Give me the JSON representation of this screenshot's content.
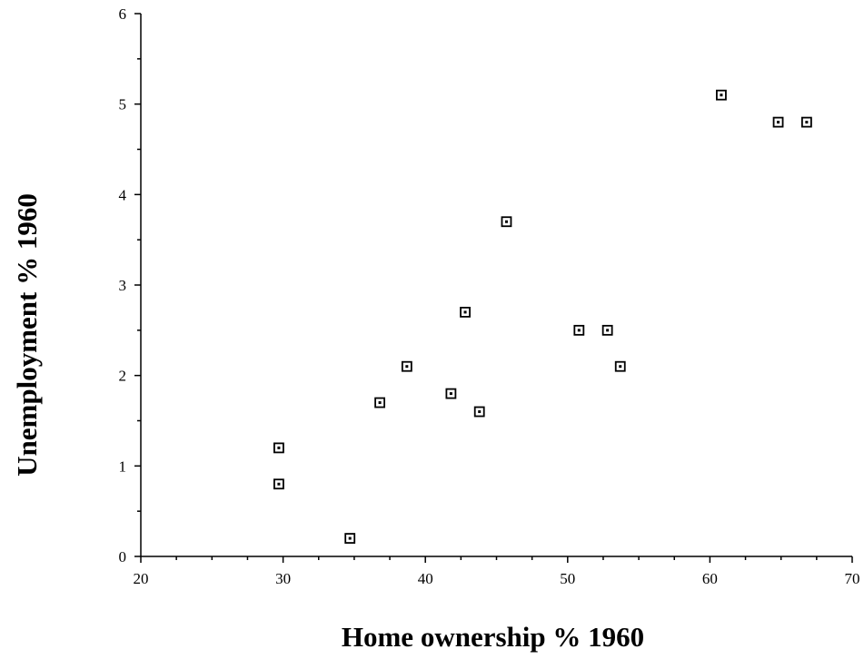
{
  "chart_data": {
    "type": "scatter",
    "title": "",
    "xlabel": "Home ownership % 1960",
    "ylabel": "Unemployment % 1960",
    "xlim": [
      20,
      70
    ],
    "ylim": [
      0,
      6
    ],
    "x_ticks": [
      20,
      30,
      40,
      50,
      60,
      70
    ],
    "y_ticks": [
      0,
      1,
      2,
      3,
      4,
      5,
      6
    ],
    "x_minor_step": 2.5,
    "y_minor_step": 0.5,
    "grid": false,
    "legend": "none",
    "marker": "hollow-square-with-dot",
    "color": "#000000",
    "series": [
      {
        "points": [
          {
            "x": 29.7,
            "y": 1.2
          },
          {
            "x": 29.7,
            "y": 0.8
          },
          {
            "x": 34.7,
            "y": 0.2
          },
          {
            "x": 36.8,
            "y": 1.7
          },
          {
            "x": 38.7,
            "y": 2.1
          },
          {
            "x": 41.8,
            "y": 1.8
          },
          {
            "x": 42.8,
            "y": 2.7
          },
          {
            "x": 43.8,
            "y": 1.6
          },
          {
            "x": 45.7,
            "y": 3.7
          },
          {
            "x": 50.8,
            "y": 2.5
          },
          {
            "x": 52.8,
            "y": 2.5
          },
          {
            "x": 53.7,
            "y": 2.1
          },
          {
            "x": 60.8,
            "y": 5.1
          },
          {
            "x": 64.8,
            "y": 4.8
          },
          {
            "x": 66.8,
            "y": 4.8
          }
        ]
      }
    ]
  }
}
